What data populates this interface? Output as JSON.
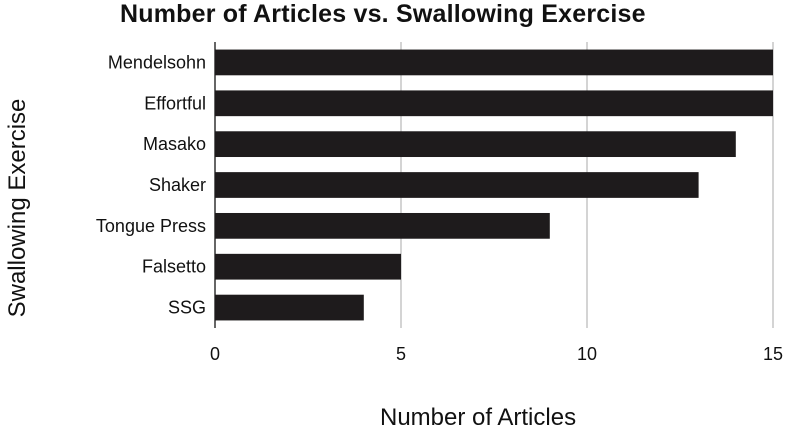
{
  "chart_data": {
    "type": "bar",
    "orientation": "horizontal",
    "title": "Number of Articles vs. Swallowing Exercise",
    "xlabel": "Number of Articles",
    "ylabel": "Swallowing Exercise",
    "categories": [
      "Mendelsohn",
      "Effortful",
      "Masako",
      "Shaker",
      "Tongue Press",
      "Falsetto",
      "SSG"
    ],
    "values": [
      15,
      15,
      14,
      13,
      9,
      5,
      4
    ],
    "xlim": [
      0,
      15
    ],
    "xticks": [
      "0",
      "5",
      "10",
      "15"
    ],
    "grid": "vertical",
    "bar_color": "#1e1b1c"
  }
}
